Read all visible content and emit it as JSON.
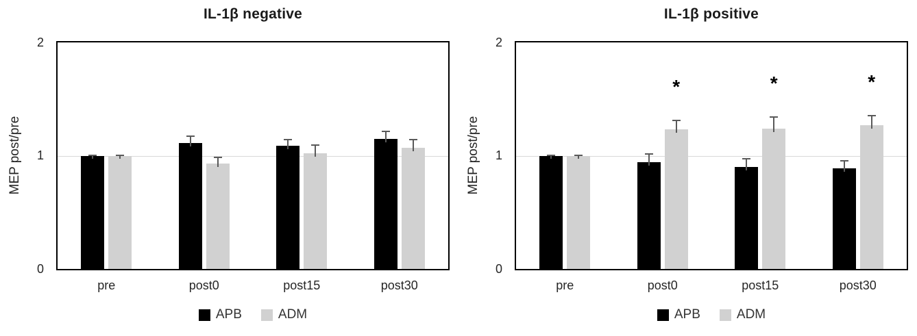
{
  "chart_data": [
    {
      "type": "bar",
      "title": "IL-1β negative",
      "ylabel": "MEP post/pre",
      "categories": [
        "pre",
        "post0",
        "post15",
        "post30"
      ],
      "ylim": [
        0,
        2
      ],
      "ytick_labels_top_to_bottom": [
        "2",
        "1",
        "0"
      ],
      "gridline_at": 1,
      "grid": "single horizontal line at y=1",
      "legend_position": "bottom-center",
      "sig_marker": "*",
      "series": [
        {
          "name": "APB",
          "color": "#000000",
          "values": [
            1.0,
            1.11,
            1.09,
            1.15
          ],
          "errors": [
            0.01,
            0.07,
            0.06,
            0.07
          ],
          "sig": [
            false,
            false,
            false,
            false
          ]
        },
        {
          "name": "ADM",
          "color": "#d1d1d1",
          "values": [
            1.0,
            0.93,
            1.02,
            1.07
          ],
          "errors": [
            0.01,
            0.06,
            0.08,
            0.08
          ],
          "sig": [
            false,
            false,
            false,
            false
          ]
        }
      ]
    },
    {
      "type": "bar",
      "title": "IL-1β positive",
      "ylabel": "MEP post/pre",
      "categories": [
        "pre",
        "post0",
        "post15",
        "post30"
      ],
      "ylim": [
        0,
        2
      ],
      "ytick_labels_top_to_bottom": [
        "2",
        "1",
        "0"
      ],
      "gridline_at": 1,
      "grid": "single horizontal line at y=1",
      "legend_position": "bottom-center",
      "sig_marker": "*",
      "series": [
        {
          "name": "APB",
          "color": "#000000",
          "values": [
            1.0,
            0.94,
            0.9,
            0.89
          ],
          "errors": [
            0.01,
            0.08,
            0.08,
            0.07
          ],
          "sig": [
            false,
            false,
            false,
            false
          ]
        },
        {
          "name": "ADM",
          "color": "#d1d1d1",
          "values": [
            1.0,
            1.23,
            1.24,
            1.27
          ],
          "errors": [
            0.01,
            0.09,
            0.11,
            0.09
          ],
          "sig": [
            false,
            true,
            true,
            true
          ]
        }
      ]
    }
  ],
  "colors": {
    "apb_bar": "#000000",
    "adm_bar": "#d1d1d1",
    "gridline": "#d9d9d9",
    "error_bar": "#595959",
    "axis_frame": "#000000",
    "significance_marker": "#000000"
  }
}
